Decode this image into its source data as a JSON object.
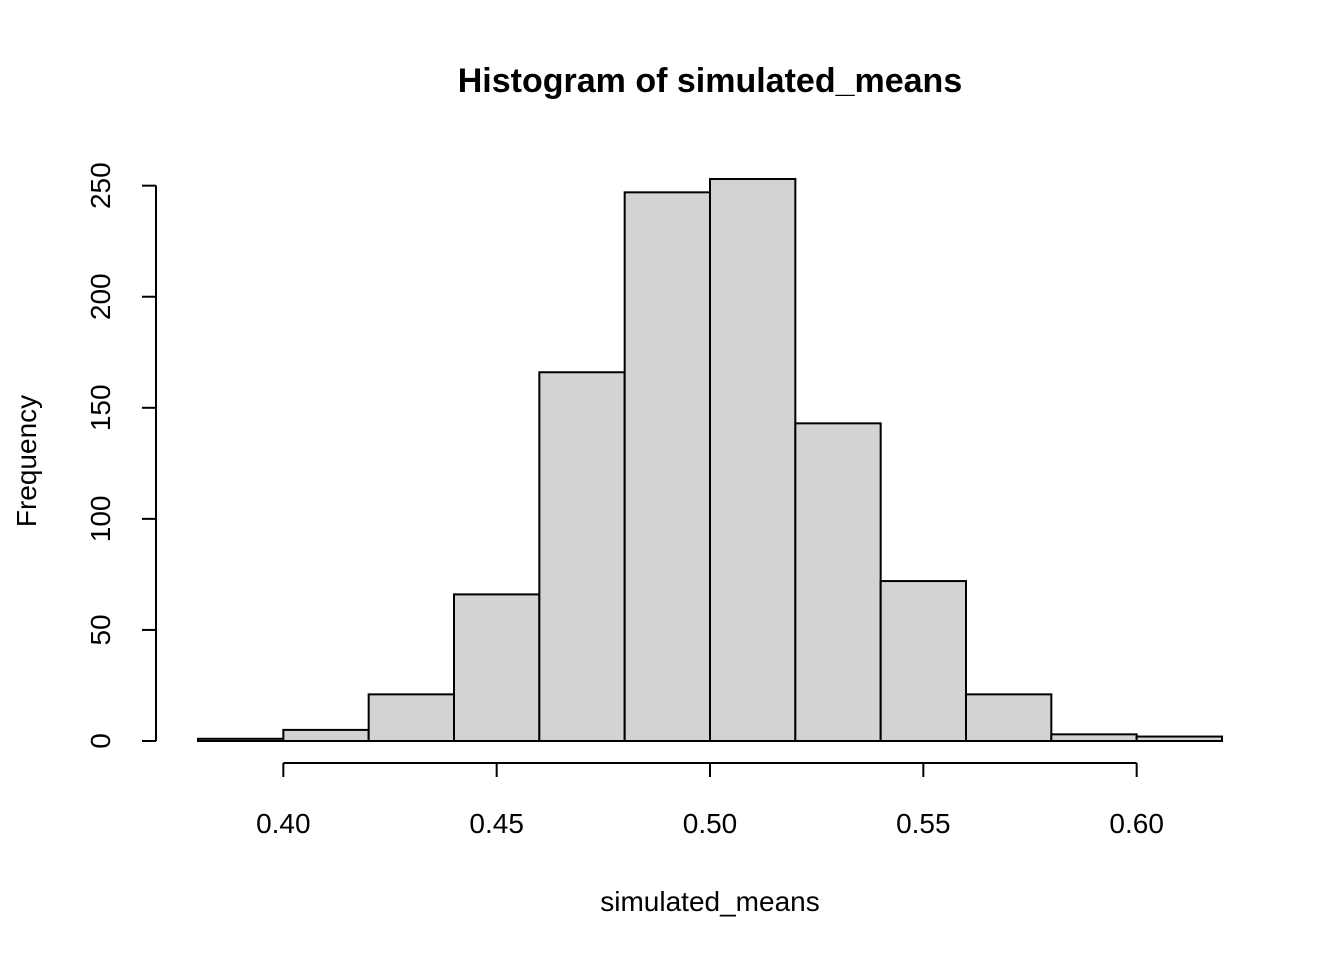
{
  "chart_data": {
    "type": "bar",
    "title": "Histogram of simulated_means",
    "xlabel": "simulated_means",
    "ylabel": "Frequency",
    "bin_edges": [
      0.38,
      0.4,
      0.42,
      0.44,
      0.46,
      0.48,
      0.5,
      0.52,
      0.54,
      0.56,
      0.58,
      0.6,
      0.62
    ],
    "values": [
      1,
      5,
      21,
      66,
      166,
      247,
      253,
      143,
      72,
      21,
      3,
      2
    ],
    "xlim": [
      0.38,
      0.62
    ],
    "ylim": [
      0,
      253
    ],
    "x_ticks": [
      0.4,
      0.45,
      0.5,
      0.55,
      0.6
    ],
    "x_tick_labels": [
      "0.40",
      "0.45",
      "0.50",
      "0.55",
      "0.60"
    ],
    "y_ticks": [
      0,
      50,
      100,
      150,
      200,
      250
    ],
    "y_tick_labels": [
      "0",
      "50",
      "100",
      "150",
      "200",
      "250"
    ],
    "colors": {
      "bar_fill": "#d3d3d3",
      "bar_stroke": "#000000"
    },
    "grid": false
  }
}
